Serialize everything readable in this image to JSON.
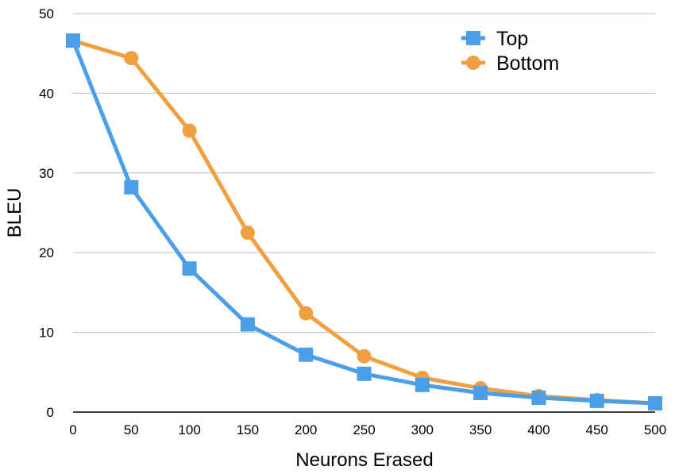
{
  "chart_data": {
    "type": "line",
    "title": "",
    "xlabel": "Neurons Erased",
    "ylabel": "BLEU",
    "x": [
      0,
      50,
      100,
      150,
      200,
      250,
      300,
      350,
      400,
      450,
      500
    ],
    "xlim": [
      0,
      500
    ],
    "ylim": [
      0,
      50
    ],
    "xticks": [
      "0",
      "50",
      "100",
      "150",
      "200",
      "250",
      "300",
      "350",
      "400",
      "450",
      "500"
    ],
    "yticks": [
      "0",
      "10",
      "20",
      "30",
      "40",
      "50"
    ],
    "grid": "horizontal",
    "legend_position": "top-right",
    "series": [
      {
        "name": "Top",
        "color": "#4A9FE8",
        "marker": "square",
        "values": [
          46.6,
          28.2,
          18.0,
          11.0,
          7.2,
          4.8,
          3.4,
          2.4,
          1.8,
          1.4,
          1.1
        ]
      },
      {
        "name": "Bottom",
        "color": "#F0A040",
        "marker": "circle",
        "values": [
          46.6,
          44.4,
          35.3,
          22.5,
          12.4,
          7.0,
          4.3,
          3.0,
          2.0,
          1.5,
          1.1
        ]
      }
    ]
  }
}
